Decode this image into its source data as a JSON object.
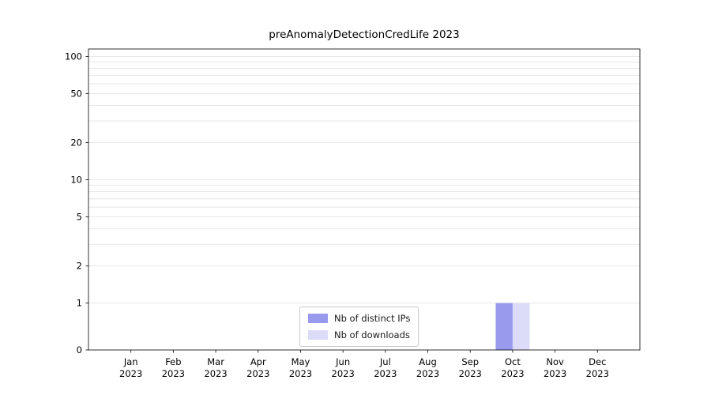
{
  "chart_data": {
    "type": "bar",
    "title": "preAnomalyDetectionCredLife 2023",
    "categories": [
      "Jan 2023",
      "Feb 2023",
      "Mar 2023",
      "Apr 2023",
      "May 2023",
      "Jun 2023",
      "Jul 2023",
      "Aug 2023",
      "Sep 2023",
      "Oct 2023",
      "Nov 2023",
      "Dec 2023"
    ],
    "series": [
      {
        "name": "Nb of distinct IPs",
        "color": "#9999ee",
        "values": [
          0,
          0,
          0,
          0,
          0,
          0,
          0,
          0,
          0,
          1,
          0,
          0
        ]
      },
      {
        "name": "Nb of downloads",
        "color": "#dcdcf8",
        "values": [
          0,
          0,
          0,
          0,
          0,
          0,
          0,
          0,
          0,
          1,
          0,
          0
        ]
      }
    ],
    "y_ticks": [
      0,
      1,
      2,
      5,
      10,
      20,
      50,
      100
    ],
    "ylim": [
      0,
      115
    ],
    "yscale": "symlog",
    "xlabel": "",
    "ylabel": "",
    "grid": "horizontal",
    "legend_position": "lower center inside axes"
  }
}
